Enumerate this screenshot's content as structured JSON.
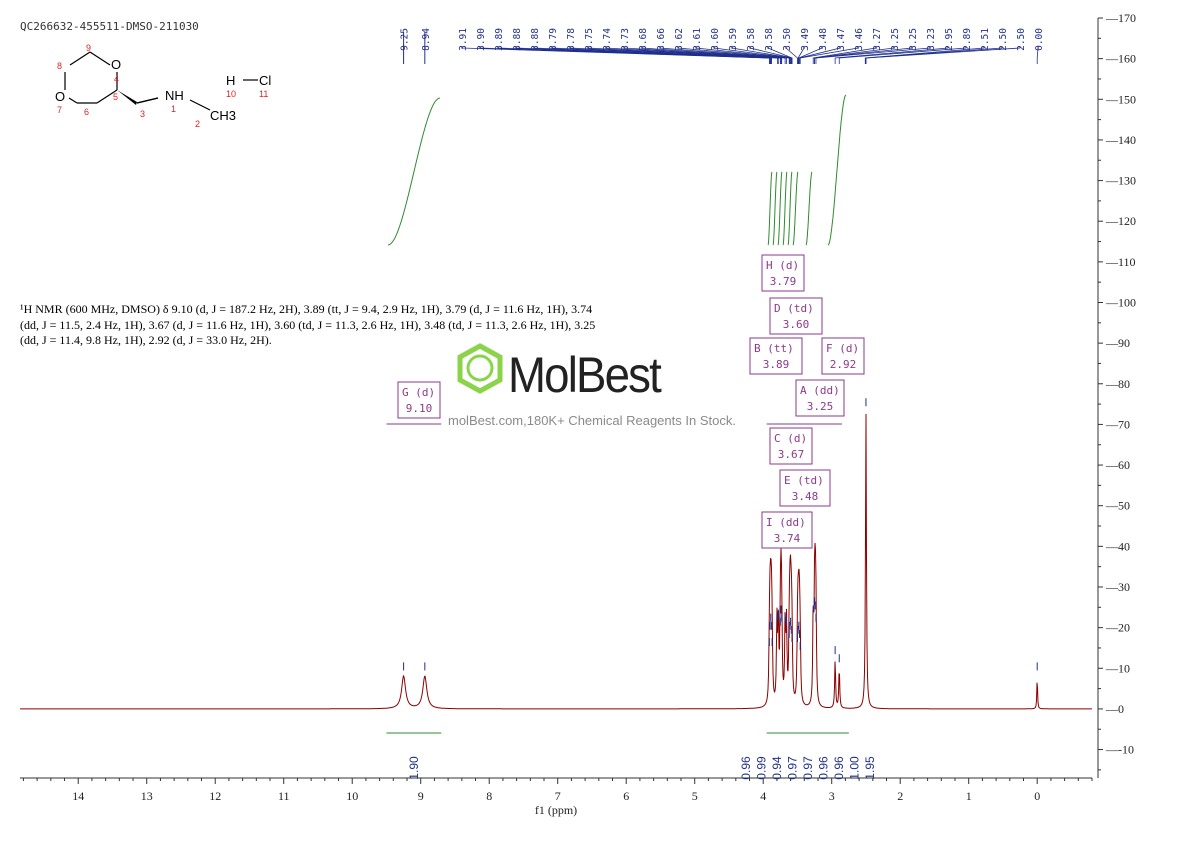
{
  "sample_id": "QC266632-455511-DMSO-211030",
  "nmr_description": "¹H NMR (600 MHz, DMSO) δ 9.10 (d, J = 187.2 Hz, 2H), 3.89 (tt, J = 9.4, 2.9 Hz, 1H), 3.79 (d, J = 11.6 Hz, 1H), 3.74 (dd, J = 11.5, 2.4 Hz, 1H), 3.67 (d, J = 11.6 Hz, 1H), 3.60 (td, J = 11.3, 2.6 Hz, 1H), 3.48 (td, J = 11.3, 2.6 Hz, 1H), 3.25 (dd, J = 11.4, 9.8 Hz, 1H), 2.92 (d, J = 33.0 Hz, 2H).",
  "watermark": {
    "brand": "MolBest",
    "url": "molBest.com,180K+ Chemical Reagents In Stock."
  },
  "structure": {
    "atoms": [
      "O",
      "O",
      "NH",
      "CH3",
      "H",
      "Cl"
    ],
    "numbers": [
      "1",
      "2",
      "3",
      "4",
      "5",
      "6",
      "7",
      "8",
      "9",
      "10",
      "11"
    ]
  },
  "chart_data": {
    "type": "line",
    "xlabel": "f1 (ppm)",
    "xlim": [
      14.85,
      -0.8
    ],
    "ylim": [
      -17,
      170
    ],
    "x_ticks": [
      14,
      13,
      12,
      11,
      10,
      9,
      8,
      7,
      6,
      5,
      4,
      3,
      2,
      1,
      0
    ],
    "y_ticks": [
      -10,
      0,
      10,
      20,
      30,
      40,
      50,
      60,
      70,
      80,
      90,
      100,
      110,
      120,
      130,
      140,
      150,
      160,
      170
    ],
    "peak_labels_left": [
      "9.25",
      "8.94"
    ],
    "peak_labels_right": [
      "3.91",
      "3.90",
      "3.89",
      "3.88",
      "3.88",
      "3.79",
      "3.78",
      "3.75",
      "3.74",
      "3.73",
      "3.68",
      "3.66",
      "3.62",
      "3.61",
      "3.60",
      "3.59",
      "3.58",
      "3.58",
      "3.50",
      "3.49",
      "3.48",
      "3.47",
      "3.46",
      "3.27",
      "3.25",
      "3.25",
      "3.23",
      "2.95",
      "2.89",
      "2.51",
      "2.50",
      "2.50",
      "0.00"
    ],
    "signals": [
      {
        "ppm": 9.25,
        "h": 8
      },
      {
        "ppm": 8.94,
        "h": 8
      },
      {
        "ppm": 3.91,
        "h": 14
      },
      {
        "ppm": 3.9,
        "h": 18
      },
      {
        "ppm": 3.89,
        "h": 20
      },
      {
        "ppm": 3.88,
        "h": 18
      },
      {
        "ppm": 3.87,
        "h": 14
      },
      {
        "ppm": 3.8,
        "h": 20
      },
      {
        "ppm": 3.78,
        "h": 21
      },
      {
        "ppm": 3.75,
        "h": 19
      },
      {
        "ppm": 3.74,
        "h": 22
      },
      {
        "ppm": 3.73,
        "h": 20
      },
      {
        "ppm": 3.68,
        "h": 20
      },
      {
        "ppm": 3.66,
        "h": 19
      },
      {
        "ppm": 3.62,
        "h": 16
      },
      {
        "ppm": 3.61,
        "h": 18
      },
      {
        "ppm": 3.6,
        "h": 19
      },
      {
        "ppm": 3.59,
        "h": 17
      },
      {
        "ppm": 3.58,
        "h": 15
      },
      {
        "ppm": 3.5,
        "h": 15
      },
      {
        "ppm": 3.49,
        "h": 17
      },
      {
        "ppm": 3.48,
        "h": 18
      },
      {
        "ppm": 3.47,
        "h": 16
      },
      {
        "ppm": 3.46,
        "h": 13
      },
      {
        "ppm": 3.27,
        "h": 22
      },
      {
        "ppm": 3.25,
        "h": 24
      },
      {
        "ppm": 3.24,
        "h": 23
      },
      {
        "ppm": 3.23,
        "h": 20
      },
      {
        "ppm": 2.95,
        "h": 12
      },
      {
        "ppm": 2.89,
        "h": 10
      },
      {
        "ppm": 2.5,
        "h": 73
      },
      {
        "ppm": 0.0,
        "h": 8
      }
    ],
    "integrals": [
      {
        "from": 9.5,
        "to": 8.7,
        "value": "1.90"
      },
      {
        "from": 3.95,
        "to": 3.85,
        "value": "0.96"
      },
      {
        "from": 3.85,
        "to": 3.76,
        "value": "0.99"
      },
      {
        "from": 3.76,
        "to": 3.7,
        "value": "0.94"
      },
      {
        "from": 3.7,
        "to": 3.63,
        "value": "0.97"
      },
      {
        "from": 3.63,
        "to": 3.54,
        "value": "0.97"
      },
      {
        "from": 3.54,
        "to": 3.4,
        "value": "0.96"
      },
      {
        "from": 3.32,
        "to": 3.18,
        "value": "0.96"
      },
      {
        "from": 3.1,
        "to": 2.8,
        "value": "1.00"
      },
      {
        "from": 2.8,
        "to": 2.8,
        "value": "1.95"
      }
    ],
    "multiplets": [
      {
        "letter": "H",
        "type": "d",
        "ppm": "3.79"
      },
      {
        "letter": "D",
        "type": "td",
        "ppm": "3.60"
      },
      {
        "letter": "B",
        "type": "tt",
        "ppm": "3.89"
      },
      {
        "letter": "F",
        "type": "d",
        "ppm": "2.92"
      },
      {
        "letter": "A",
        "type": "dd",
        "ppm": "3.25"
      },
      {
        "letter": "G",
        "type": "d",
        "ppm": "9.10"
      },
      {
        "letter": "C",
        "type": "d",
        "ppm": "3.67"
      },
      {
        "letter": "E",
        "type": "td",
        "ppm": "3.48"
      },
      {
        "letter": "I",
        "type": "dd",
        "ppm": "3.74"
      }
    ]
  }
}
